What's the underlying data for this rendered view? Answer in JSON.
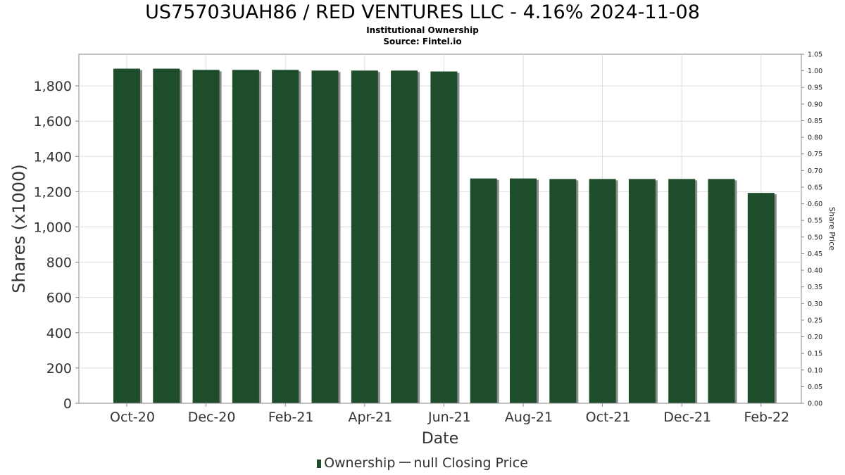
{
  "title": "US75703UAH86 / RED VENTURES LLC - 4.16% 2024-11-08",
  "subtitle": "Institutional Ownership",
  "source": "Source: Fintel.io",
  "legend": {
    "ownership": "Ownership",
    "price": "null Closing Price"
  },
  "colors": {
    "bar": "#1e4d2b",
    "bar_shadow": "#8a8a8a",
    "grid": "#dddddd",
    "axis": "#888888"
  },
  "chart_data": {
    "type": "bar",
    "xlabel": "Date",
    "ylabel": "Shares (x1000)",
    "y2label": "Share Price",
    "ylim": [
      0,
      1980
    ],
    "y2lim": [
      0,
      1.05
    ],
    "yticks": [
      "0",
      "200",
      "400",
      "600",
      "800",
      "1,000",
      "1,200",
      "1,400",
      "1,600",
      "1,800"
    ],
    "y2ticks": [
      "0.00",
      "0.05",
      "0.10",
      "0.15",
      "0.20",
      "0.25",
      "0.30",
      "0.35",
      "0.40",
      "0.45",
      "0.50",
      "0.55",
      "0.60",
      "0.65",
      "0.70",
      "0.75",
      "0.80",
      "0.85",
      "0.90",
      "0.95",
      "1.00",
      "1.05"
    ],
    "xticks": [
      "Oct-20",
      "Dec-20",
      "Feb-21",
      "Apr-21",
      "Jun-21",
      "Aug-21",
      "Oct-21",
      "Dec-21",
      "Feb-22"
    ],
    "series": [
      {
        "name": "Ownership",
        "values": [
          1898,
          1898,
          1891,
          1891,
          1891,
          1887,
          1887,
          1887,
          1882,
          1275,
          1275,
          1272,
          1272,
          1272,
          1272,
          1272,
          1193
        ]
      }
    ],
    "grid": true
  }
}
